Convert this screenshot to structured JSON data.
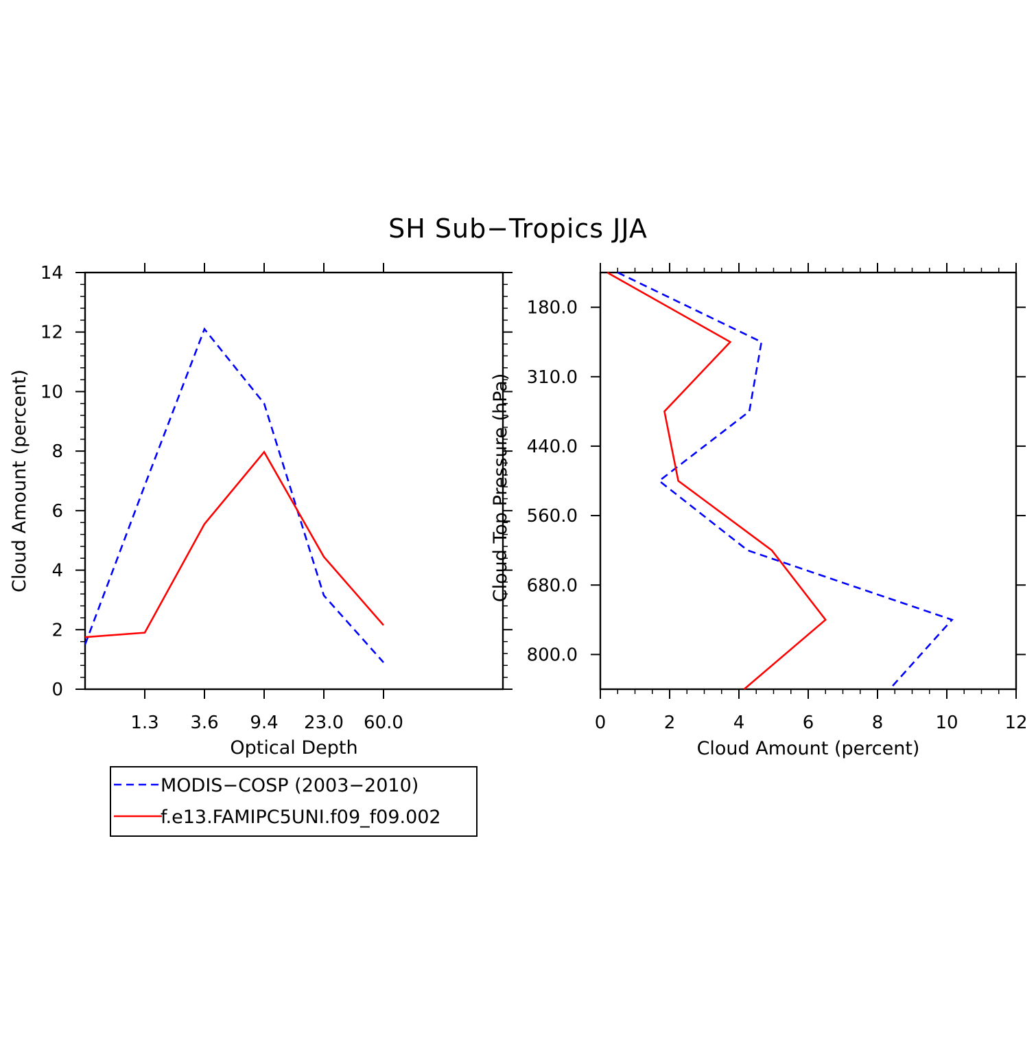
{
  "title": "SH Sub−Tropics JJA",
  "colors": {
    "modis": "#0000ff",
    "model": "#ff0000",
    "axis": "#000000"
  },
  "legend": {
    "placement": "below left panel",
    "entries": [
      {
        "label": "MODIS−COSP (2003−2010)",
        "color": "#0000ff",
        "style": "dashed"
      },
      {
        "label": "f.e13.FAMIPC5UNI.f09_f09.002",
        "color": "#ff0000",
        "style": "solid"
      }
    ]
  },
  "chart_data": [
    {
      "type": "line",
      "xlabel": "Optical Depth",
      "ylabel": "Cloud Amount (percent)",
      "x_ticks": [
        "1.3",
        "3.6",
        "9.4",
        "23.0",
        "60.0"
      ],
      "y_ticks": [
        "0",
        "2",
        "4",
        "6",
        "8",
        "10",
        "12",
        "14"
      ],
      "ylim": [
        0,
        14
      ],
      "x_bins": 7,
      "series": [
        {
          "name": "MODIS−COSP (2003−2010)",
          "values": [
            1.5,
            6.85,
            12.1,
            9.6,
            3.15,
            0.9
          ]
        },
        {
          "name": "f.e13.FAMIPC5UNI.f09_f09.002",
          "values": [
            1.75,
            1.9,
            5.55,
            7.97,
            4.45,
            2.15
          ]
        }
      ],
      "series_bin_positions": [
        0,
        2,
        4,
        6,
        8,
        10
      ]
    },
    {
      "type": "line",
      "xlabel": "Cloud Amount (percent)",
      "ylabel": "Cloud Top Pressure (hPa)",
      "x_ticks": [
        "0",
        "2",
        "4",
        "6",
        "8",
        "10",
        "12"
      ],
      "xlim": [
        0,
        12
      ],
      "y_ticks": [
        "180.0",
        "310.0",
        "440.0",
        "560.0",
        "680.0",
        "800.0"
      ],
      "y_bins": 6,
      "series": [
        {
          "name": "MODIS−COSP (2003−2010)",
          "values": [
            0.5,
            4.65,
            4.3,
            1.7,
            4.25,
            10.15,
            8.35
          ]
        },
        {
          "name": "f.e13.FAMIPC5UNI.f09_f09.002",
          "values": [
            0.2,
            3.75,
            1.85,
            2.25,
            4.95,
            6.5,
            4.15
          ]
        }
      ],
      "series_bin_positions": [
        0,
        1,
        2,
        3,
        4,
        5,
        6
      ]
    }
  ]
}
